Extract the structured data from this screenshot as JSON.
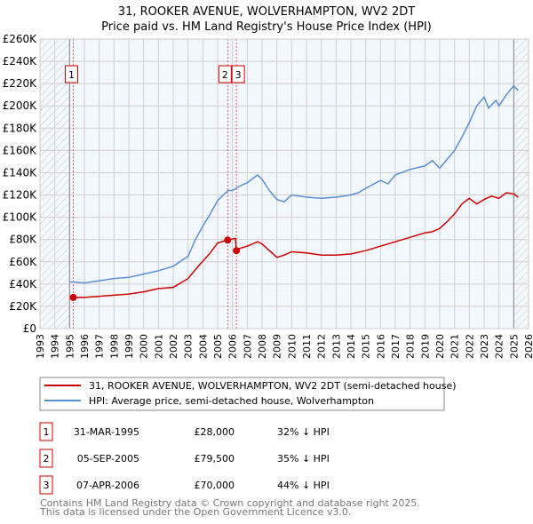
{
  "chart_data": {
    "type": "line",
    "title": "31, ROOKER AVENUE, WOLVERHAMPTON, WV2 2DT",
    "subtitle": "Price paid vs. HM Land Registry's House Price Index (HPI)",
    "xlabel": "",
    "ylabel": "",
    "xlim": [
      1993,
      2026
    ],
    "ylim": [
      0,
      260000
    ],
    "grid": true,
    "y_ticks": [
      0,
      20000,
      40000,
      60000,
      80000,
      100000,
      120000,
      140000,
      160000,
      180000,
      200000,
      220000,
      240000,
      260000
    ],
    "y_tick_labels": [
      "£0",
      "£20K",
      "£40K",
      "£60K",
      "£80K",
      "£100K",
      "£120K",
      "£140K",
      "£160K",
      "£180K",
      "£200K",
      "£220K",
      "£240K",
      "£260K"
    ],
    "x_ticks": [
      1993,
      1994,
      1995,
      1996,
      1997,
      1998,
      1999,
      2000,
      2001,
      2002,
      2003,
      2004,
      2005,
      2006,
      2007,
      2008,
      2009,
      2010,
      2011,
      2012,
      2013,
      2014,
      2015,
      2016,
      2017,
      2018,
      2019,
      2020,
      2021,
      2022,
      2023,
      2024,
      2025,
      2026
    ],
    "x_tick_labels": [
      "1993",
      "1994",
      "1995",
      "1996",
      "1997",
      "1998",
      "1999",
      "2000",
      "2001",
      "2002",
      "2003",
      "2004",
      "2005",
      "2006",
      "2007",
      "2008",
      "2009",
      "2010",
      "2011",
      "2012",
      "2013",
      "2014",
      "2015",
      "2016",
      "2017",
      "2018",
      "2019",
      "2020",
      "2021",
      "2022",
      "2023",
      "2024",
      "2025",
      "2026"
    ],
    "hatched_ranges": [
      [
        1993,
        1995.0
      ],
      [
        2025.0,
        2026
      ]
    ],
    "series": [
      {
        "name": "31, ROOKER AVENUE, WOLVERHAMPTON, WV2 2DT (semi-detached house)",
        "color": "#cc0000",
        "x": [
          1995.25,
          1996,
          1997,
          1998,
          1999,
          2000,
          2001,
          2002,
          2003,
          2003.7,
          2004.5,
          2005,
          2005.68,
          2006.2,
          2006.27,
          2006.5,
          2007,
          2007.7,
          2008,
          2008.5,
          2009,
          2009.5,
          2010,
          2011,
          2012,
          2013,
          2014,
          2015,
          2016,
          2017,
          2018,
          2019,
          2019.5,
          2020,
          2020.5,
          2021,
          2021.5,
          2022,
          2022.5,
          2023,
          2023.5,
          2024,
          2024.5,
          2025,
          2025.3
        ],
        "y": [
          28000,
          28000,
          29000,
          30000,
          31000,
          33000,
          36000,
          37000,
          45000,
          56000,
          68000,
          77000,
          79500,
          81000,
          70000,
          72000,
          74000,
          78000,
          76000,
          70000,
          64000,
          66000,
          69000,
          68000,
          66000,
          66000,
          67000,
          70000,
          74000,
          78000,
          82000,
          86000,
          87000,
          90000,
          96000,
          103000,
          112000,
          117000,
          112000,
          116000,
          119000,
          117000,
          122000,
          121000,
          118000
        ]
      },
      {
        "name": "HPI: Average price, semi-detached house, Wolverhampton",
        "color": "#5b8fd4",
        "x": [
          1995,
          1996,
          1997,
          1998,
          1999,
          2000,
          2001,
          2002,
          2003,
          2003.5,
          2004,
          2004.5,
          2005,
          2005.7,
          2006,
          2006.5,
          2007,
          2007.7,
          2008,
          2008.5,
          2009,
          2009.5,
          2010,
          2011,
          2012,
          2013,
          2014,
          2014.5,
          2015,
          2016,
          2016.5,
          2017,
          2018,
          2019,
          2019.5,
          2020,
          2020.5,
          2021,
          2021.5,
          2022,
          2022.5,
          2023,
          2023.3,
          2023.8,
          2024,
          2024.5,
          2025,
          2025.3
        ],
        "y": [
          42000,
          41000,
          43000,
          45000,
          46000,
          49000,
          52000,
          56000,
          65000,
          80000,
          92000,
          103000,
          115000,
          124000,
          124000,
          128000,
          131000,
          138000,
          134000,
          124000,
          116000,
          114000,
          120000,
          118000,
          117000,
          118000,
          120000,
          122000,
          126000,
          133000,
          130000,
          138000,
          143000,
          146000,
          151000,
          144000,
          152000,
          160000,
          172000,
          185000,
          200000,
          208000,
          198000,
          205000,
          200000,
          210000,
          218000,
          214000
        ]
      }
    ],
    "sales": [
      {
        "marker": "1",
        "x": 1995.25,
        "price": 28000
      },
      {
        "marker": "2",
        "x": 2005.68,
        "price": 79500
      },
      {
        "marker": "3",
        "x": 2006.27,
        "price": 70000
      }
    ]
  },
  "legend": [
    {
      "label": "31, ROOKER AVENUE, WOLVERHAMPTON, WV2 2DT (semi-detached house)",
      "color": "#cc0000"
    },
    {
      "label": "HPI: Average price, semi-detached house, Wolverhampton",
      "color": "#5b8fd4"
    }
  ],
  "transactions": [
    {
      "num": "1",
      "date": "31-MAR-1995",
      "price": "£28,000",
      "hpi": "32% ↓ HPI"
    },
    {
      "num": "2",
      "date": "05-SEP-2005",
      "price": "£79,500",
      "hpi": "35% ↓ HPI"
    },
    {
      "num": "3",
      "date": "07-APR-2006",
      "price": "£70,000",
      "hpi": "44% ↓ HPI"
    }
  ],
  "footer": {
    "line1": "Contains HM Land Registry data © Crown copyright and database right 2025.",
    "line2": "This data is licensed under the Open Government Licence v3.0."
  }
}
